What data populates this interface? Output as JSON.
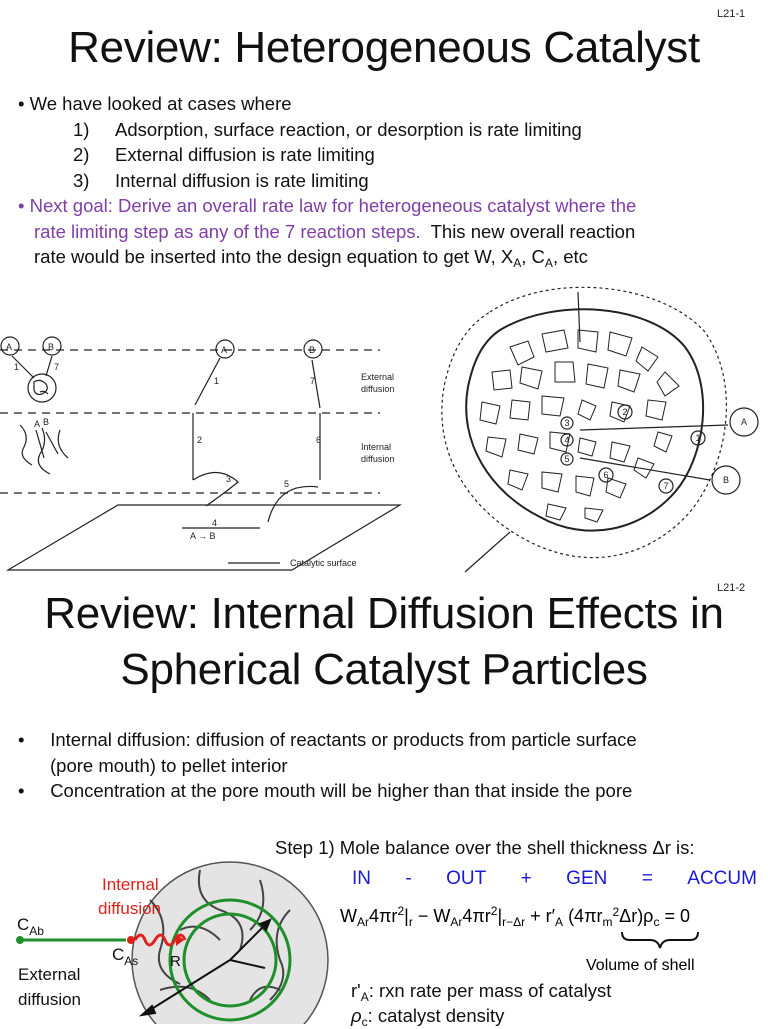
{
  "slide1": {
    "page_label": "L21-1",
    "title": "Review: Heterogeneous Catalyst",
    "intro": "We have looked at cases where",
    "cases": [
      {
        "num": "1)",
        "text": "Adsorption, surface reaction, or desorption is rate limiting"
      },
      {
        "num": "2)",
        "text": "External diffusion is rate limiting"
      },
      {
        "num": "3)",
        "text": "Internal diffusion is rate limiting"
      }
    ],
    "goal_purple_line1": "Next goal: Derive an overall rate law for heterogeneous catalyst where the",
    "goal_purple_line2": "rate limiting step as any of the 7 reaction steps.",
    "goal_black_line2": "This new overall reaction",
    "goal_line3_prefix": "rate would be inserted into the design equation to get W, X",
    "goal_line3_sub_a": "A",
    "goal_line3_mid": ", C",
    "goal_line3_sub_b": "A",
    "goal_line3_suffix": ", etc",
    "diagram_left": {
      "species_a": "A",
      "species_b": "B",
      "label_external": "External",
      "label_external2": "diffusion",
      "label_internal": "Internal",
      "label_internal2": "diffusion",
      "label_surface": "Catalytic surface",
      "reaction": "A → B",
      "steps": [
        "1",
        "2",
        "3",
        "4",
        "5",
        "6",
        "7"
      ]
    },
    "diagram_right": {
      "species_a": "A",
      "species_b": "B",
      "steps": [
        "1",
        "2",
        "3",
        "4",
        "5",
        "6",
        "7"
      ]
    }
  },
  "slide2": {
    "page_label": "L21-2",
    "title_line1": "Review: Internal Diffusion Effects in",
    "title_line2": "Spherical Catalyst Particles",
    "bullets": [
      "Internal diffusion: diffusion of reactants or products from particle surface (pore mouth) to pellet interior",
      "Concentration at the pore mouth will be higher than that inside the pore"
    ],
    "bullet1_line1": "Internal diffusion: diffusion of reactants or products from particle surface",
    "bullet1_line2": "(pore mouth) to pellet interior",
    "step1": "Step 1) Mole balance over the shell thickness Δr is:",
    "balance_terms": [
      "IN",
      "-",
      "OUT",
      "+",
      "GEN",
      "=",
      "ACCUM"
    ],
    "equation": "W_Ar 4πr² |_r − W_Ar 4πr² |_(r−Δr) + r′_A (4πr_m²Δr) ρ_c = 0",
    "volume_label": "Volume of shell",
    "def_ra": "r'A: rxn rate per mass of catalyst",
    "def_ra_text": ": rxn rate per mass of catalyst",
    "def_rhoc": "ρc: catalyst density",
    "def_rhoc_text": ": catalyst density",
    "sphere": {
      "label_internal1": "Internal",
      "label_internal2": "diffusion",
      "label_cab": "C",
      "label_cab_sub": "Ab",
      "label_cas": "C",
      "label_cas_sub": "As",
      "label_r": "R",
      "label_external1": "External",
      "label_external2": "diffusion",
      "internal_color": "#e0201a",
      "ring_color": "#1f8f2a"
    }
  },
  "colors": {
    "purple": "#7f3fa6",
    "blue": "#1a1ad6",
    "red": "#e0201a",
    "green": "#1f8f2a"
  }
}
